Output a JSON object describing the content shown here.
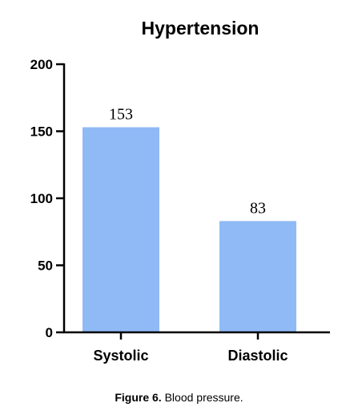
{
  "chart_data": {
    "type": "bar",
    "title": "Hypertension",
    "categories": [
      "Systolic",
      "Diastolic"
    ],
    "values": [
      153,
      83
    ],
    "data_labels": [
      "153",
      "83"
    ],
    "ylim": [
      0,
      200
    ],
    "yticks": [
      0,
      50,
      100,
      150,
      200
    ],
    "bar_color": "#8fbaf5",
    "xlabel": "",
    "ylabel": "",
    "grid": false
  },
  "caption": {
    "label": "Figure 6.",
    "text": "Blood pressure."
  }
}
